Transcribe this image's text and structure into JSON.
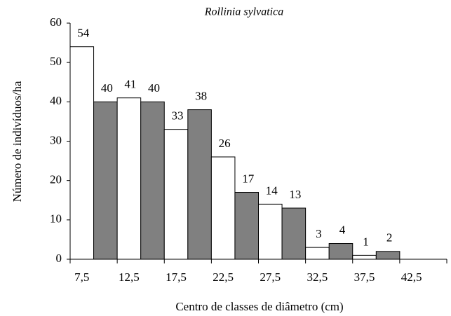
{
  "chart_data": {
    "type": "bar",
    "title": "Rollinia sylvatica",
    "x_label": "Centro de classes de diâmetro (cm)",
    "y_label": "Número de indivíduos/ha",
    "categories": [
      "7,5",
      "12,5",
      "17,5",
      "22,5",
      "27,5",
      "32,5",
      "37,5",
      "42,5"
    ],
    "series": [
      {
        "color": "#ffffff",
        "values": [
          54,
          41,
          33,
          26,
          14,
          3,
          1,
          null
        ]
      },
      {
        "color": "#808080",
        "values": [
          40,
          40,
          38,
          17,
          13,
          4,
          2,
          null
        ]
      }
    ],
    "ylim": [
      0,
      60
    ],
    "yticks": [
      0,
      10,
      20,
      30,
      40,
      50,
      60
    ],
    "grid": false
  }
}
